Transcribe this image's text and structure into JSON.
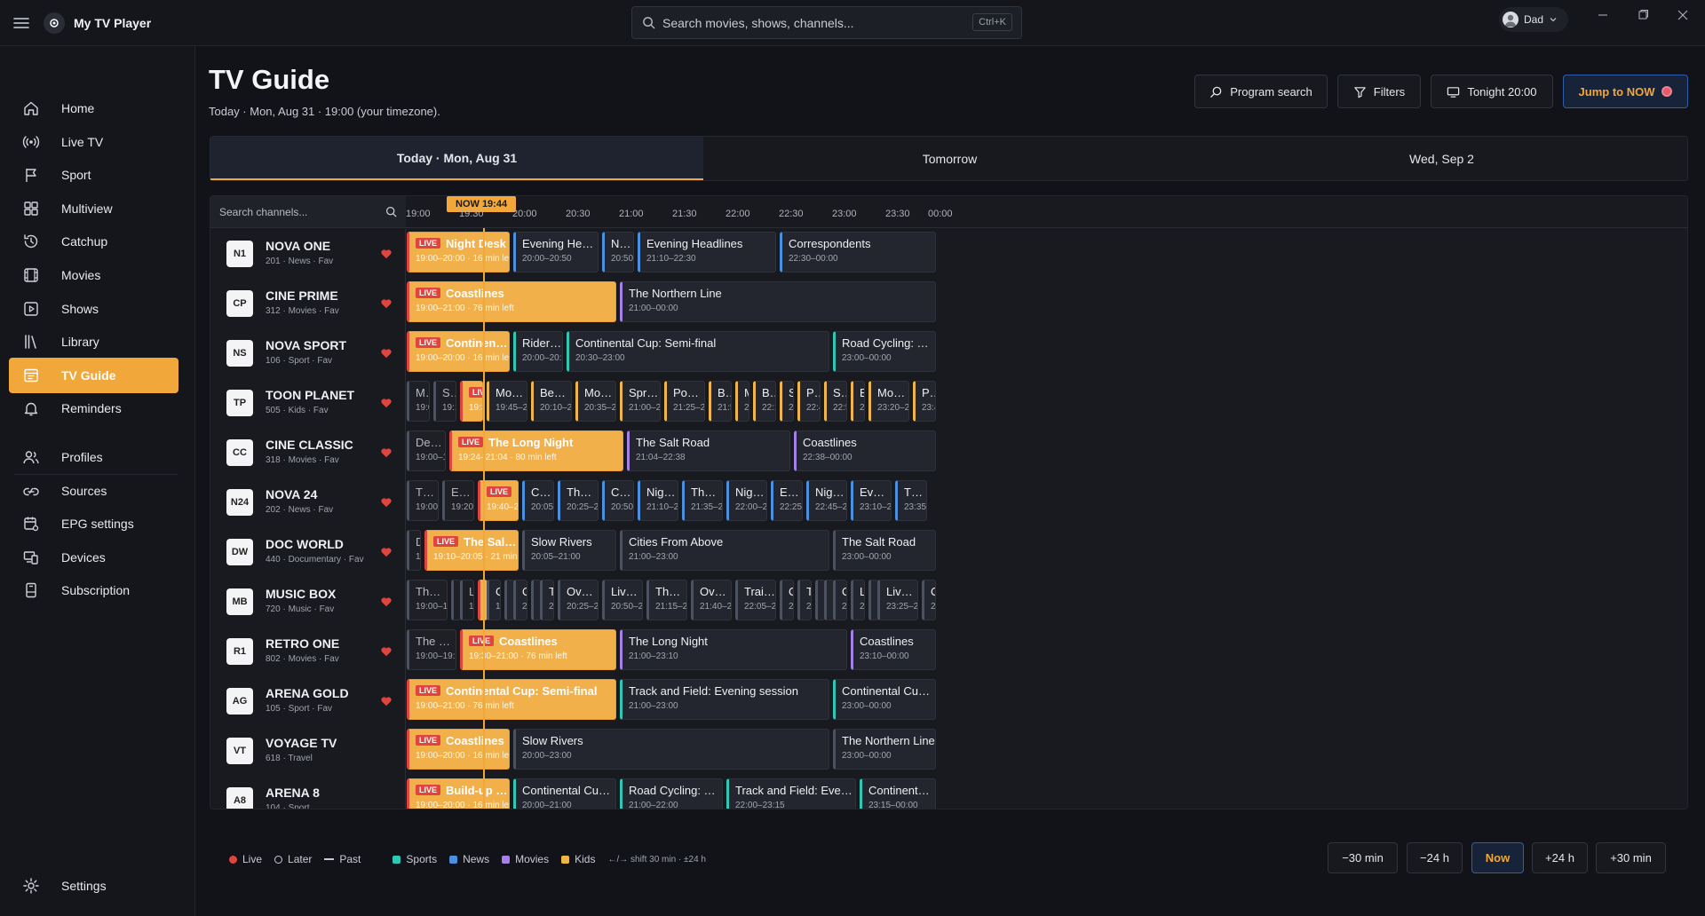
{
  "app": {
    "title": "My TV Player",
    "user": "Dad"
  },
  "search": {
    "placeholder": "Search movies, shows, channels...",
    "shortcut": "Ctrl+K"
  },
  "sidebar": {
    "items": [
      {
        "label": "Home",
        "icon": "home-icon"
      },
      {
        "label": "Live TV",
        "icon": "broadcast-icon"
      },
      {
        "label": "Sport",
        "icon": "flag-icon"
      },
      {
        "label": "Multiview",
        "icon": "grid-icon"
      },
      {
        "label": "Catchup",
        "icon": "history-icon"
      },
      {
        "label": "Movies",
        "icon": "film-icon"
      },
      {
        "label": "Shows",
        "icon": "play-icon"
      },
      {
        "label": "Library",
        "icon": "library-icon"
      },
      {
        "label": "TV Guide",
        "icon": "guide-icon",
        "active": true
      },
      {
        "label": "Reminders",
        "icon": "bell-icon"
      },
      {
        "label": "Profiles",
        "icon": "users-icon"
      },
      {
        "label": "Sources",
        "icon": "link-icon"
      },
      {
        "label": "EPG settings",
        "icon": "calendar-gear-icon"
      },
      {
        "label": "Devices",
        "icon": "devices-icon"
      },
      {
        "label": "Subscription",
        "icon": "card-icon"
      }
    ],
    "settings_label": "Settings"
  },
  "header": {
    "title": "TV Guide",
    "subtitle": "Today · Mon, Aug 31 · 19:00 (your timezone).",
    "buttons": {
      "program_search": "Program search",
      "filters": "Filters",
      "tonight": "Tonight 20:00",
      "jump_now": "Jump to NOW"
    }
  },
  "day_tabs": [
    "Today · Mon, Aug 31",
    "Tomorrow",
    "Wed, Sep 2"
  ],
  "guide": {
    "channel_search_placeholder": "Search channels...",
    "now_label": "NOW 19:44",
    "now_time": "19:44",
    "start_time": "19:00",
    "ticks": [
      "19:00",
      "19:30",
      "20:00",
      "20:30",
      "21:00",
      "21:30",
      "22:00",
      "22:30",
      "23:00",
      "23:30",
      "00:00"
    ],
    "live_tag": "LIVE",
    "channels": [
      {
        "logo": "N1",
        "name": "NOVA ONE",
        "meta": "201 · News · Fav",
        "fav": true,
        "genre": "news",
        "programs": [
          {
            "title": "Night Desk",
            "time": "19:00–20:00 · 16 min left",
            "live": true,
            "s": "19:00",
            "e": "20:00"
          },
          {
            "title": "Evening Headlines",
            "time": "20:00–20:50",
            "s": "20:00",
            "e": "20:50"
          },
          {
            "title": "Night D...",
            "time": "20:50–21:10",
            "s": "20:50",
            "e": "21:10"
          },
          {
            "title": "Evening Headlines",
            "time": "21:10–22:30",
            "s": "21:10",
            "e": "22:30"
          },
          {
            "title": "Correspondents",
            "time": "22:30–00:00",
            "s": "22:30",
            "e": "24:00"
          }
        ]
      },
      {
        "logo": "CP",
        "name": "CINE PRIME",
        "meta": "312 · Movies · Fav",
        "fav": true,
        "genre": "movies",
        "programs": [
          {
            "title": "Coastlines",
            "time": "19:00–21:00 · 76 min left",
            "live": true,
            "s": "19:00",
            "e": "21:00"
          },
          {
            "title": "The Northern Line",
            "time": "21:00–00:00",
            "s": "21:00",
            "e": "24:00"
          }
        ]
      },
      {
        "logo": "NS",
        "name": "NOVA SPORT",
        "meta": "106 · Sport · Fav",
        "fav": true,
        "genre": "sports",
        "programs": [
          {
            "title": "Continental Cup: Semi-final",
            "time": "19:00–20:00 · 16 min left",
            "live": true,
            "s": "19:00",
            "e": "20:00"
          },
          {
            "title": "Rider's Diary",
            "time": "20:00–20:30",
            "s": "20:00",
            "e": "20:30"
          },
          {
            "title": "Continental Cup: Semi-final",
            "time": "20:30–23:00",
            "s": "20:30",
            "e": "23:00"
          },
          {
            "title": "Road Cycling: Stage 14",
            "time": "23:00–00:00",
            "s": "23:00",
            "e": "24:00"
          }
        ]
      },
      {
        "logo": "TP",
        "name": "TOON PLANET",
        "meta": "505 · Kids · Fav",
        "fav": true,
        "genre": "kids",
        "programs": [
          {
            "title": "M...",
            "time": "19:00–...",
            "past": true,
            "s": "19:00",
            "e": "19:15"
          },
          {
            "title": "S...",
            "time": "19:15–...",
            "past": true,
            "s": "19:15",
            "e": "19:30"
          },
          {
            "title": "",
            "time": "19:30–...",
            "live": true,
            "s": "19:30",
            "e": "19:45"
          },
          {
            "title": "Morning Bl...",
            "time": "19:45–20:10",
            "s": "19:45",
            "e": "20:10"
          },
          {
            "title": "Bedtime Bl...",
            "time": "20:10–20:35",
            "s": "20:10",
            "e": "20:35"
          },
          {
            "title": "Morning Bl...",
            "time": "20:35–21:00",
            "s": "20:35",
            "e": "21:00"
          },
          {
            "title": "Sprout Stre...",
            "time": "21:00–21:25",
            "s": "21:00",
            "e": "21:25"
          },
          {
            "title": "Pocket Pilots",
            "time": "21:25–21:50",
            "s": "21:25",
            "e": "21:50"
          },
          {
            "title": "Bedt...",
            "time": "21:50–...",
            "s": "21:50",
            "e": "22:05"
          },
          {
            "title": "M...",
            "time": "22...",
            "s": "22:05",
            "e": "22:15"
          },
          {
            "title": "Bedt...",
            "time": "22:15–...",
            "s": "22:15",
            "e": "22:30"
          },
          {
            "title": "S...",
            "time": "22...",
            "s": "22:30",
            "e": "22:40"
          },
          {
            "title": "Pock...",
            "time": "22:40–...",
            "s": "22:40",
            "e": "22:55"
          },
          {
            "title": "Spro...",
            "time": "22:55–...",
            "s": "22:55",
            "e": "23:10"
          },
          {
            "title": "B...",
            "time": "23...",
            "s": "23:10",
            "e": "23:20"
          },
          {
            "title": "Morning Bl...",
            "time": "23:20–23:45",
            "s": "23:20",
            "e": "23:45"
          },
          {
            "title": "Pock...",
            "time": "23:45–...",
            "s": "23:45",
            "e": "24:00"
          }
        ]
      },
      {
        "logo": "CC",
        "name": "CINE CLASSIC",
        "meta": "318 · Movies · Fav",
        "fav": true,
        "genre": "movies",
        "programs": [
          {
            "title": "Deep ...",
            "time": "19:00–19:24",
            "past": true,
            "s": "19:00",
            "e": "19:24"
          },
          {
            "title": "The Long Night",
            "time": "19:24–21:04 · 80 min left",
            "live": true,
            "s": "19:24",
            "e": "21:04"
          },
          {
            "title": "The Salt Road",
            "time": "21:04–22:38",
            "s": "21:04",
            "e": "22:38"
          },
          {
            "title": "Coastlines",
            "time": "22:38–00:00",
            "s": "22:38",
            "e": "24:00"
          }
        ]
      },
      {
        "logo": "N24",
        "name": "NOVA 24",
        "meta": "202 · News · Fav",
        "fav": true,
        "genre": "news",
        "programs": [
          {
            "title": "The...",
            "time": "19:00–19:20",
            "past": true,
            "s": "19:00",
            "e": "19:20"
          },
          {
            "title": "Eve...",
            "time": "19:20–19:40",
            "past": true,
            "s": "19:20",
            "e": "19:40"
          },
          {
            "title": "The L...",
            "time": "19:40–20:05 · 2...",
            "live": true,
            "s": "19:40",
            "e": "20:05"
          },
          {
            "title": "Corresp...",
            "time": "20:05–20:25",
            "s": "20:05",
            "e": "20:25"
          },
          {
            "title": "The Long V...",
            "time": "20:25–20:50",
            "s": "20:25",
            "e": "20:50"
          },
          {
            "title": "Corresp...",
            "time": "20:50–21:10",
            "s": "20:50",
            "e": "21:10"
          },
          {
            "title": "Night Desk",
            "time": "21:10–21:35",
            "s": "21:10",
            "e": "21:35"
          },
          {
            "title": "The Long V...",
            "time": "21:35–22:00",
            "s": "21:35",
            "e": "22:00"
          },
          {
            "title": "Night Desk",
            "time": "22:00–22:25",
            "s": "22:00",
            "e": "22:25"
          },
          {
            "title": "Evening...",
            "time": "22:25–22:45",
            "s": "22:25",
            "e": "22:45"
          },
          {
            "title": "Night Desk",
            "time": "22:45–23:10",
            "s": "22:45",
            "e": "23:10"
          },
          {
            "title": "Evening He...",
            "time": "23:10–23:35",
            "s": "23:10",
            "e": "23:35"
          },
          {
            "title": "The Lon...",
            "time": "23:35–23:55",
            "s": "23:35",
            "e": "23:55"
          }
        ]
      },
      {
        "logo": "DW",
        "name": "DOC WORLD",
        "meta": "440 · Documentary · Fav",
        "fav": true,
        "genre": "",
        "programs": [
          {
            "title": "D...",
            "time": "19...",
            "past": true,
            "s": "19:00",
            "e": "19:10"
          },
          {
            "title": "The Salt Road",
            "time": "19:10–20:05 · 21 min left",
            "live": true,
            "s": "19:10",
            "e": "20:05"
          },
          {
            "title": "Slow Rivers",
            "time": "20:05–21:00",
            "s": "20:05",
            "e": "21:00"
          },
          {
            "title": "Cities From Above",
            "time": "21:00–23:00",
            "s": "21:00",
            "e": "23:00"
          },
          {
            "title": "The Salt Road",
            "time": "23:00–00:00",
            "s": "23:00",
            "e": "24:00"
          }
        ]
      },
      {
        "logo": "MB",
        "name": "MUSIC BOX",
        "meta": "720 · Music · Fav",
        "fav": true,
        "genre": "",
        "programs": [
          {
            "title": "The Lat...",
            "time": "19:00–19:25",
            "past": true,
            "s": "19:00",
            "e": "19:25"
          },
          {
            "title": "",
            "time": "",
            "past": true,
            "s": "19:25",
            "e": "19:30"
          },
          {
            "title": "Li...",
            "time": "19...",
            "past": true,
            "s": "19:30",
            "e": "19:40"
          },
          {
            "title": "",
            "time": "",
            "live": true,
            "s": "19:40",
            "e": "19:45"
          },
          {
            "title": "O...",
            "time": "19...",
            "s": "19:45",
            "e": "19:55"
          },
          {
            "title": "",
            "time": "",
            "s": "19:55",
            "e": "20:00"
          },
          {
            "title": "O...",
            "time": "20...",
            "s": "20:00",
            "e": "20:10"
          },
          {
            "title": "",
            "time": "",
            "s": "20:10",
            "e": "20:15"
          },
          {
            "title": "T...",
            "time": "20...",
            "s": "20:15",
            "e": "20:25"
          },
          {
            "title": "Overnight ...",
            "time": "20:25–20:50",
            "s": "20:25",
            "e": "20:50"
          },
          {
            "title": "Live Sessions",
            "time": "20:50–21:15",
            "s": "20:50",
            "e": "21:15"
          },
          {
            "title": "The Late Set",
            "time": "21:15–21:40",
            "s": "21:15",
            "e": "21:40"
          },
          {
            "title": "Overnight ...",
            "time": "21:40–22:05",
            "s": "21:40",
            "e": "22:05"
          },
          {
            "title": "Trailers",
            "time": "22:05–22:30",
            "s": "22:05",
            "e": "22:30"
          },
          {
            "title": "O...",
            "time": "22...",
            "s": "22:30",
            "e": "22:40"
          },
          {
            "title": "T...",
            "time": "22...",
            "s": "22:40",
            "e": "22:50"
          },
          {
            "title": "",
            "time": "",
            "s": "22:50",
            "e": "22:55"
          },
          {
            "title": "",
            "time": "",
            "s": "22:55",
            "e": "23:00"
          },
          {
            "title": "O...",
            "time": "23...",
            "s": "23:00",
            "e": "23:10"
          },
          {
            "title": "Li...",
            "time": "23...",
            "s": "23:10",
            "e": "23:20"
          },
          {
            "title": "",
            "time": "",
            "s": "23:20",
            "e": "23:25"
          },
          {
            "title": "Live Sessions",
            "time": "23:25–23:50",
            "s": "23:25",
            "e": "23:50"
          },
          {
            "title": "O...",
            "time": "23...",
            "s": "23:50",
            "e": "24:00"
          }
        ]
      },
      {
        "logo": "R1",
        "name": "RETRO ONE",
        "meta": "802 · Movies · Fav",
        "fav": true,
        "genre": "movies",
        "programs": [
          {
            "title": "The Long ...",
            "time": "19:00–19:30",
            "past": true,
            "s": "19:00",
            "e": "19:30"
          },
          {
            "title": "Coastlines",
            "time": "19:30–21:00 · 76 min left",
            "live": true,
            "s": "19:30",
            "e": "21:00"
          },
          {
            "title": "The Long Night",
            "time": "21:00–23:10",
            "s": "21:00",
            "e": "23:10"
          },
          {
            "title": "Coastlines",
            "time": "23:10–00:00",
            "s": "23:10",
            "e": "24:00"
          }
        ]
      },
      {
        "logo": "AG",
        "name": "ARENA GOLD",
        "meta": "105 · Sport · Fav",
        "fav": true,
        "genre": "sports",
        "programs": [
          {
            "title": "Continental Cup: Semi-final",
            "time": "19:00–21:00 · 76 min left",
            "live": true,
            "s": "19:00",
            "e": "21:00"
          },
          {
            "title": "Track and Field: Evening session",
            "time": "21:00–23:00",
            "s": "21:00",
            "e": "23:00"
          },
          {
            "title": "Continental Cup: Semi-final",
            "time": "23:00–00:00",
            "s": "23:00",
            "e": "24:00"
          }
        ]
      },
      {
        "logo": "VT",
        "name": "VOYAGE TV",
        "meta": "618 · Travel",
        "fav": false,
        "genre": "",
        "programs": [
          {
            "title": "Coastlines",
            "time": "19:00–20:00 · 16 min left",
            "live": true,
            "s": "19:00",
            "e": "20:00"
          },
          {
            "title": "Slow Rivers",
            "time": "20:00–23:00",
            "s": "20:00",
            "e": "23:00"
          },
          {
            "title": "The Northern Line",
            "time": "23:00–00:00",
            "s": "23:00",
            "e": "24:00"
          }
        ]
      },
      {
        "logo": "A8",
        "name": "ARENA 8",
        "meta": "104 · Sport",
        "fav": false,
        "genre": "sports",
        "programs": [
          {
            "title": "Build-up and team news",
            "time": "19:00–20:00 · 16 min left",
            "live": true,
            "s": "19:00",
            "e": "20:00"
          },
          {
            "title": "Continental Cup: Semi-final",
            "time": "20:00–21:00",
            "s": "20:00",
            "e": "21:00"
          },
          {
            "title": "Road Cycling: Stage 14",
            "time": "21:00–22:00",
            "s": "21:00",
            "e": "22:00"
          },
          {
            "title": "Track and Field: Evening session",
            "time": "22:00–23:15",
            "s": "22:00",
            "e": "23:15"
          },
          {
            "title": "Continental Cup: Semi-fi...",
            "time": "23:15–00:00",
            "s": "23:15",
            "e": "24:00"
          }
        ]
      }
    ]
  },
  "legend": {
    "live": "Live",
    "later": "Later",
    "past": "Past",
    "sports": "Sports",
    "news": "News",
    "movies": "Movies",
    "kids": "Kids",
    "hint": "←/→ shift 30 min · ±24 h"
  },
  "colors": {
    "accent": "#f2a73b",
    "live": "#e0443e",
    "sports": "#2ec9b4",
    "news": "#4a8fe0",
    "movies": "#a580e8",
    "kids": "#f0b548"
  },
  "shift_buttons": [
    "−30 min",
    "−24 h",
    "Now",
    "+24 h",
    "+30 min"
  ]
}
